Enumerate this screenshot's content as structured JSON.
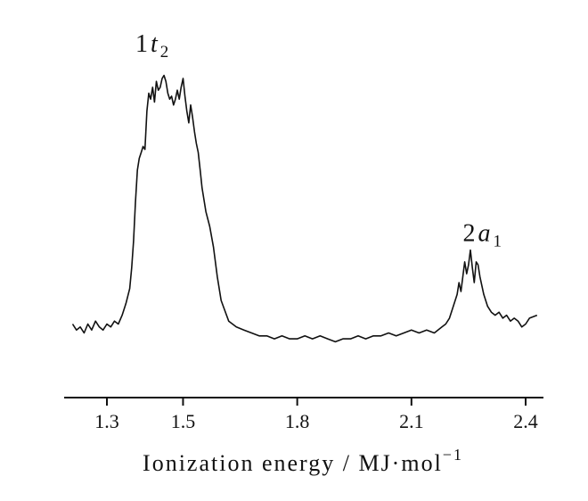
{
  "chart_data": {
    "type": "line",
    "xlabel": "Ionization energy / MJ·mol",
    "xlabel_superscript": "−1",
    "xlim": [
      1.2,
      2.45
    ],
    "ylim": [
      0,
      1
    ],
    "grid": false,
    "x_ticks": [
      {
        "value": 1.3,
        "label": "1.3"
      },
      {
        "value": 1.5,
        "label": "1.5"
      },
      {
        "value": 1.8,
        "label": "1.8"
      },
      {
        "value": 2.1,
        "label": "2.1"
      },
      {
        "value": 2.4,
        "label": "2.4"
      }
    ],
    "annotations": [
      {
        "id": "peak-1t2",
        "base": "1",
        "italic": "t",
        "sub": "2",
        "x": 1.41,
        "y": 1.0
      },
      {
        "id": "peak-2a1",
        "base": "2",
        "italic": "a",
        "sub": "1",
        "x": 2.27,
        "y": 0.36
      }
    ],
    "series": [
      {
        "x": [
          1.21,
          1.22,
          1.23,
          1.24,
          1.25,
          1.26,
          1.27,
          1.28,
          1.29,
          1.3,
          1.31,
          1.32,
          1.33,
          1.34,
          1.35,
          1.36,
          1.365,
          1.37,
          1.375,
          1.38,
          1.385,
          1.39,
          1.395,
          1.4,
          1.405,
          1.41,
          1.415,
          1.42,
          1.425,
          1.43,
          1.435,
          1.44,
          1.445,
          1.45,
          1.455,
          1.46,
          1.465,
          1.47,
          1.475,
          1.48,
          1.485,
          1.49,
          1.495,
          1.5,
          1.505,
          1.51,
          1.515,
          1.52,
          1.525,
          1.53,
          1.535,
          1.54,
          1.545,
          1.55,
          1.56,
          1.57,
          1.58,
          1.59,
          1.6,
          1.62,
          1.64,
          1.66,
          1.68,
          1.7,
          1.72,
          1.74,
          1.76,
          1.78,
          1.8,
          1.82,
          1.84,
          1.86,
          1.88,
          1.9,
          1.92,
          1.94,
          1.96,
          1.98,
          2.0,
          2.02,
          2.04,
          2.06,
          2.08,
          2.1,
          2.12,
          2.14,
          2.16,
          2.18,
          2.19,
          2.2,
          2.21,
          2.22,
          2.225,
          2.23,
          2.235,
          2.24,
          2.245,
          2.25,
          2.255,
          2.26,
          2.265,
          2.27,
          2.275,
          2.28,
          2.29,
          2.3,
          2.31,
          2.32,
          2.33,
          2.34,
          2.35,
          2.36,
          2.37,
          2.38,
          2.39,
          2.4,
          2.41,
          2.43
        ],
        "y": [
          0.14,
          0.12,
          0.13,
          0.11,
          0.14,
          0.12,
          0.15,
          0.13,
          0.12,
          0.14,
          0.13,
          0.15,
          0.14,
          0.17,
          0.21,
          0.26,
          0.33,
          0.42,
          0.55,
          0.66,
          0.7,
          0.72,
          0.74,
          0.73,
          0.86,
          0.92,
          0.9,
          0.94,
          0.89,
          0.96,
          0.93,
          0.94,
          0.97,
          0.98,
          0.96,
          0.92,
          0.9,
          0.91,
          0.88,
          0.9,
          0.93,
          0.9,
          0.94,
          0.97,
          0.91,
          0.86,
          0.82,
          0.88,
          0.84,
          0.79,
          0.75,
          0.72,
          0.66,
          0.6,
          0.52,
          0.47,
          0.4,
          0.3,
          0.22,
          0.15,
          0.13,
          0.12,
          0.11,
          0.1,
          0.1,
          0.09,
          0.1,
          0.09,
          0.09,
          0.1,
          0.09,
          0.1,
          0.09,
          0.08,
          0.09,
          0.09,
          0.1,
          0.09,
          0.1,
          0.1,
          0.11,
          0.1,
          0.11,
          0.12,
          0.11,
          0.12,
          0.11,
          0.13,
          0.14,
          0.16,
          0.2,
          0.24,
          0.28,
          0.25,
          0.3,
          0.35,
          0.31,
          0.34,
          0.39,
          0.33,
          0.28,
          0.35,
          0.34,
          0.3,
          0.24,
          0.2,
          0.18,
          0.17,
          0.18,
          0.16,
          0.17,
          0.15,
          0.16,
          0.15,
          0.13,
          0.14,
          0.16,
          0.17
        ]
      }
    ]
  }
}
